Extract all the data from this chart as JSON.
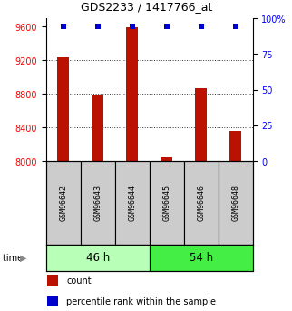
{
  "title": "GDS2233 / 1417766_at",
  "samples": [
    "GSM96642",
    "GSM96643",
    "GSM96644",
    "GSM96645",
    "GSM96646",
    "GSM96648"
  ],
  "counts": [
    9240,
    8790,
    9590,
    8050,
    8870,
    8360
  ],
  "groups": [
    {
      "label": "46 h",
      "indices": [
        0,
        1,
        2
      ],
      "color": "#b8ffb8"
    },
    {
      "label": "54 h",
      "indices": [
        3,
        4,
        5
      ],
      "color": "#44ee44"
    }
  ],
  "ymin": 8000,
  "ymax": 9700,
  "yticks": [
    8000,
    8400,
    8800,
    9200,
    9600
  ],
  "right_yticks": [
    0,
    25,
    50,
    75,
    100
  ],
  "right_ytick_labels": [
    "0",
    "25",
    "50",
    "75",
    "100%"
  ],
  "bar_color": "#bb1100",
  "dot_color": "#0000cc",
  "bar_width": 0.35,
  "grid_color": "#333333",
  "background_color": "#ffffff",
  "legend_count_color": "#bb1100",
  "legend_pct_color": "#0000cc",
  "label_box_color": "#cccccc",
  "label_fontsize": 6.0,
  "group_fontsize": 8.5
}
